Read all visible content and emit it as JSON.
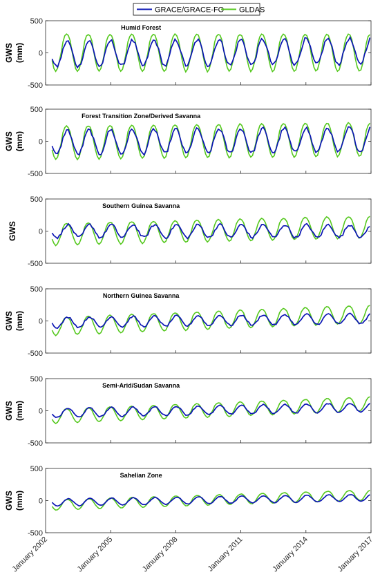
{
  "legend": [
    {
      "name": "GRACE/GRACE-FO",
      "color": "#0a14b4"
    },
    {
      "name": "GLDAS",
      "color": "#55c81e"
    }
  ],
  "chart_data": [
    {
      "type": "line",
      "title": "Humid Forest",
      "ylabel": "GWS\n(mm)",
      "ylim": [
        -500,
        500
      ],
      "yticks": [
        -500,
        0,
        500
      ],
      "xlim": [
        "2002-04",
        "2017-01"
      ],
      "series_shape": {
        "GRACE/GRACE-FO": {
          "amplitude": 200,
          "phase": 0.75,
          "trend": 30,
          "noise": 55
        },
        "GLDAS": {
          "amplitude": 290,
          "phase": 0.72,
          "trend": 0,
          "noise": 15
        }
      }
    },
    {
      "type": "line",
      "title": "Forest Transition Zone/Derived Savanna",
      "ylabel": "GWS\n(mm)",
      "ylim": [
        -500,
        500
      ],
      "yticks": [
        -500,
        0,
        500
      ],
      "xlim": [
        "2002-04",
        "2017-01"
      ],
      "series_shape": {
        "GRACE/GRACE-FO": {
          "amplitude": 190,
          "phase": 0.75,
          "trend": 30,
          "noise": 50
        },
        "GLDAS": {
          "amplitude": 260,
          "phase": 0.72,
          "trend": 40,
          "noise": 15
        }
      }
    },
    {
      "type": "line",
      "title": "Southern Guinea Savanna",
      "ylabel": "GWS",
      "ylim": [
        -500,
        500
      ],
      "yticks": [
        -500,
        0,
        500
      ],
      "xlim": [
        "2002-04",
        "2017-01"
      ],
      "series_shape": {
        "GRACE/GRACE-FO": {
          "amplitude": 100,
          "phase": 0.78,
          "trend": 0,
          "noise": 40
        },
        "GLDAS": {
          "amplitude": 170,
          "phase": 0.72,
          "trend": 90,
          "noise": 12
        }
      }
    },
    {
      "type": "line",
      "title": "Northern Guinea Savanna",
      "ylabel": "GWS\n(mm)",
      "ylim": [
        -500,
        500
      ],
      "yticks": [
        -500,
        0,
        500
      ],
      "xlim": [
        "2002-04",
        "2017-01"
      ],
      "series_shape": {
        "GRACE/GRACE-FO": {
          "amplitude": 80,
          "phase": 0.78,
          "trend": 40,
          "noise": 25
        },
        "GLDAS": {
          "amplitude": 140,
          "phase": 0.72,
          "trend": 150,
          "noise": 10
        }
      }
    },
    {
      "type": "line",
      "title": "Semi-Arid/Sudan Savanna",
      "ylabel": "GWS\n(mm)",
      "ylim": [
        -500,
        500
      ],
      "yticks": [
        -500,
        0,
        500
      ],
      "xlim": [
        "2002-04",
        "2017-01"
      ],
      "series_shape": {
        "GRACE/GRACE-FO": {
          "amplitude": 70,
          "phase": 0.78,
          "trend": 60,
          "noise": 18
        },
        "GLDAS": {
          "amplitude": 110,
          "phase": 0.72,
          "trend": 150,
          "noise": 8
        }
      }
    },
    {
      "type": "line",
      "title": "Sahelian Zone",
      "ylabel": "GWS\n(mm)",
      "ylim": [
        -500,
        500
      ],
      "yticks": [
        -500,
        0,
        500
      ],
      "xlim": [
        "2002-04",
        "2017-01"
      ],
      "series_shape": {
        "GRACE/GRACE-FO": {
          "amplitude": 55,
          "phase": 0.8,
          "trend": 50,
          "noise": 10
        },
        "GLDAS": {
          "amplitude": 80,
          "phase": 0.75,
          "trend": 120,
          "noise": 6
        }
      }
    }
  ],
  "x_ticks": [
    {
      "label": "January 2002",
      "value": 2002.0
    },
    {
      "label": "January 2005",
      "value": 2005.0
    },
    {
      "label": "January 2008",
      "value": 2008.0
    },
    {
      "label": "January 2011",
      "value": 2011.0
    },
    {
      "label": "January 2014",
      "value": 2014.0
    },
    {
      "label": "January 2017",
      "value": 2017.0
    }
  ],
  "x_range": [
    2002.0,
    2017.0
  ]
}
